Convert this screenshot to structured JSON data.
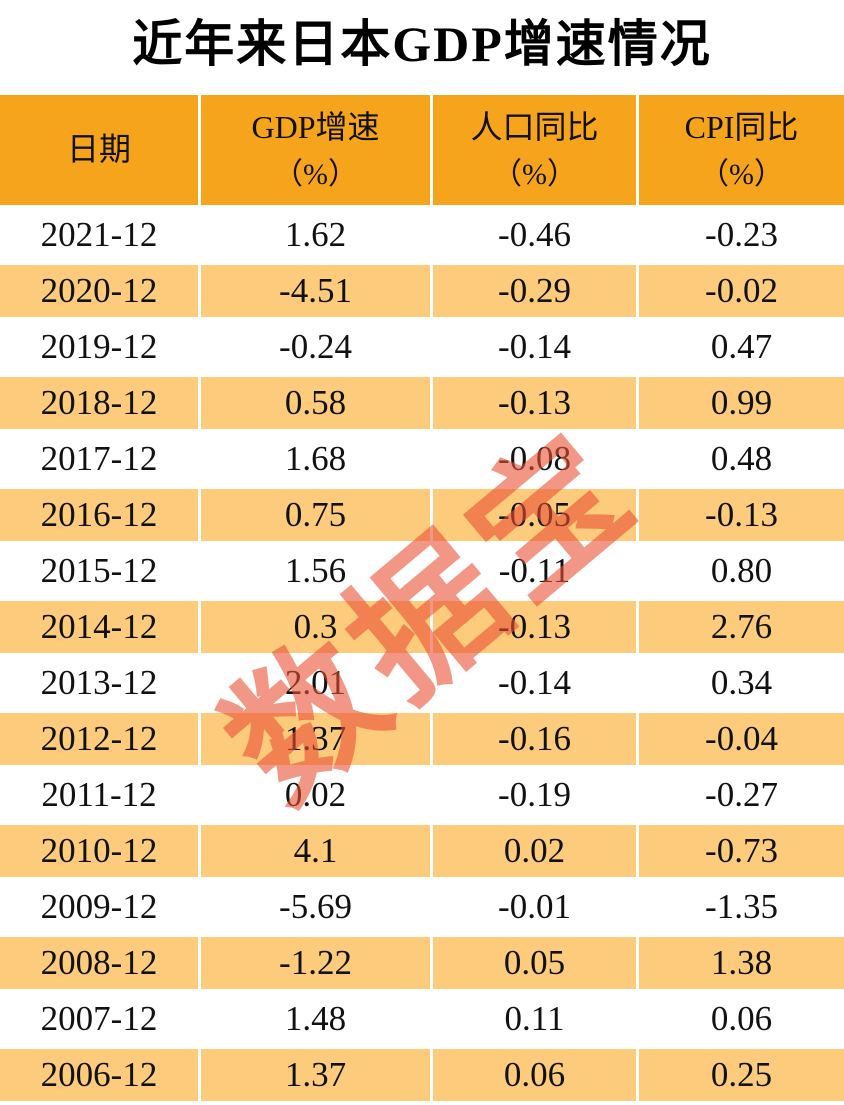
{
  "title": "近年来日本GDP增速情况",
  "watermark": {
    "text": "数据宝"
  },
  "colors": {
    "header_bg": "#F6A41C",
    "row_alt_bg": "#FCCB7C",
    "watermark_color": "rgba(234, 80, 52, 0.6)",
    "text_color": "#111111"
  },
  "table": {
    "columns": [
      {
        "label": "日期",
        "unit": ""
      },
      {
        "label": "GDP增速",
        "unit": "（%）"
      },
      {
        "label": "人口同比",
        "unit": "（%）"
      },
      {
        "label": "CPI同比",
        "unit": "（%）"
      }
    ]
  },
  "chart_data": {
    "type": "table",
    "title": "近年来日本GDP增速情况",
    "columns": [
      "日期",
      "GDP增速（%）",
      "人口同比（%）",
      "CPI同比（%）"
    ],
    "rows": [
      [
        "2021-12",
        "1.62",
        "-0.46",
        "-0.23"
      ],
      [
        "2020-12",
        "-4.51",
        "-0.29",
        "-0.02"
      ],
      [
        "2019-12",
        "-0.24",
        "-0.14",
        "0.47"
      ],
      [
        "2018-12",
        "0.58",
        "-0.13",
        "0.99"
      ],
      [
        "2017-12",
        "1.68",
        "-0.08",
        "0.48"
      ],
      [
        "2016-12",
        "0.75",
        "-0.05",
        "-0.13"
      ],
      [
        "2015-12",
        "1.56",
        "-0.11",
        "0.80"
      ],
      [
        "2014-12",
        "0.3",
        "-0.13",
        "2.76"
      ],
      [
        "2013-12",
        "2.01",
        "-0.14",
        "0.34"
      ],
      [
        "2012-12",
        "1.37",
        "-0.16",
        "-0.04"
      ],
      [
        "2011-12",
        "0.02",
        "-0.19",
        "-0.27"
      ],
      [
        "2010-12",
        "4.1",
        "0.02",
        "-0.73"
      ],
      [
        "2009-12",
        "-5.69",
        "-0.01",
        "-1.35"
      ],
      [
        "2008-12",
        "-1.22",
        "0.05",
        "1.38"
      ],
      [
        "2007-12",
        "1.48",
        "0.11",
        "0.06"
      ],
      [
        "2006-12",
        "1.37",
        "0.06",
        "0.25"
      ]
    ]
  }
}
